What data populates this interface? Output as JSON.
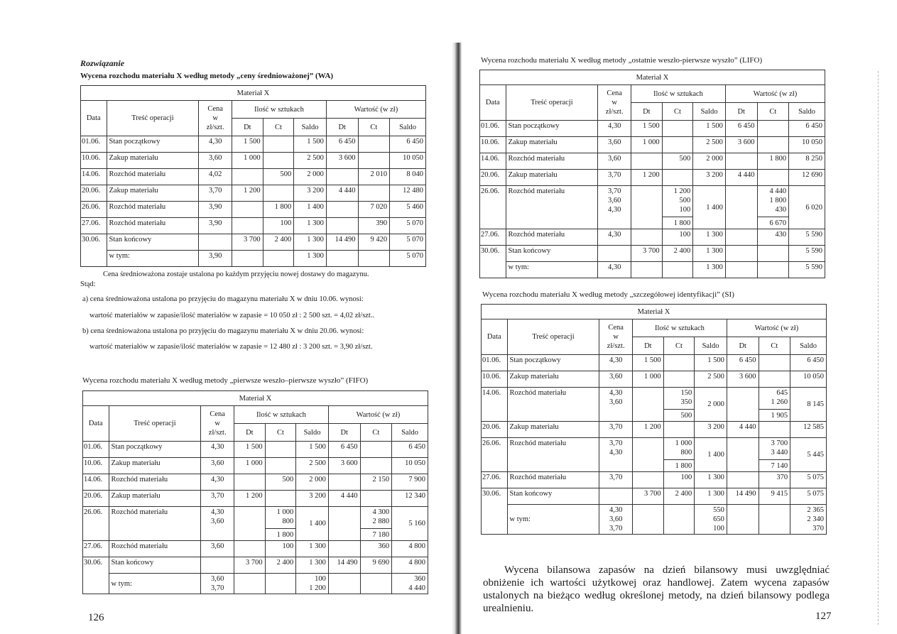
{
  "headers": {
    "material": "Materiał X",
    "date": "Data",
    "desc": "Treść operacji",
    "price": [
      "Cena",
      "w",
      "zł/szt."
    ],
    "qty": "Ilość w sztukach",
    "value": "Wartość (w zł)",
    "dt": "Dt",
    "ct": "Ct",
    "saldo": "Saldo"
  },
  "left_page": {
    "heading": "Rozwiązanie",
    "paragraph": "Cena średnioważona zostaje ustalona po każdym przyjęciu nowej dostawy do magazynu.",
    "stad": "Stąd:",
    "a": "a) cena średnioważona ustalona po przyjęciu do magazynu materiału X w dniu 10.06. wynosi:",
    "a_formula": "wartość materiałów w zapasie/ilość materiałów w zapasie = 10 050 zł : 2 500 szt. = 4,02 zł/szt..",
    "b": "b) cena średnioważona ustalona po przyjęciu do magazynu materiału X w dniu 20.06. wynosi:",
    "b_formula": "wartość materiałów w zapasie/ilość materiałów w zapasie = 12 480 zł : 3 200 szt. = 3,90 zł/szt.",
    "page_number": "126"
  },
  "right_page": {
    "paragraph": "Wycena bilansowa zapasów na dzień bilansowy musi uwzględniać obniżenie ich wartości użytkowej oraz handlowej. Zatem wycena zapasów ustalonych na bieżąco według określonej metody, na dzień bilansowy podlega urealnieniu.",
    "page_number": "127"
  },
  "tables": [
    {
      "caption": "Wycena rozchodu materiału X według metody „ceny średnioważonej” (WA)",
      "rows": [
        {
          "date": "01.06.",
          "desc": "Stan początkowy",
          "price": [
            "4,30"
          ],
          "q_dt": [
            "1 500"
          ],
          "q_ct": [],
          "q_saldo": [
            "1 500"
          ],
          "v_dt": [
            "6 450"
          ],
          "v_ct": [],
          "v_saldo": [
            "6 450"
          ]
        },
        {
          "date": "10.06.",
          "desc": "Zakup materiału",
          "price": [
            "3,60"
          ],
          "q_dt": [
            "1 000"
          ],
          "q_ct": [],
          "q_saldo": [
            "2 500"
          ],
          "v_dt": [
            "3 600"
          ],
          "v_ct": [],
          "v_saldo": [
            "10 050"
          ]
        },
        {
          "date": "14.06.",
          "desc": "Rozchód materiału",
          "price": [
            "4,02"
          ],
          "q_dt": [],
          "q_ct": [
            "500"
          ],
          "q_saldo": [
            "2 000"
          ],
          "v_dt": [],
          "v_ct": [
            "2 010"
          ],
          "v_saldo": [
            "8 040"
          ]
        },
        {
          "date": "20.06.",
          "desc": "Zakup materiału",
          "price": [
            "3,70"
          ],
          "q_dt": [
            "1 200"
          ],
          "q_ct": [],
          "q_saldo": [
            "3 200"
          ],
          "v_dt": [
            "4 440"
          ],
          "v_ct": [],
          "v_saldo": [
            "12 480"
          ]
        },
        {
          "date": "26.06.",
          "desc": "Rozchód materiału",
          "price": [
            "3,90"
          ],
          "q_dt": [],
          "q_ct": [
            "1 800"
          ],
          "q_saldo": [
            "1 400"
          ],
          "v_dt": [],
          "v_ct": [
            "7 020"
          ],
          "v_saldo": [
            "5 460"
          ]
        },
        {
          "date": "27.06.",
          "desc": "Rozchód materiału",
          "price": [
            "3,90"
          ],
          "q_dt": [],
          "q_ct": [
            "100"
          ],
          "q_saldo": [
            "1 300"
          ],
          "v_dt": [],
          "v_ct": [
            "390"
          ],
          "v_saldo": [
            "5 070"
          ]
        },
        {
          "date": "30.06.",
          "desc": "Stan końcowy",
          "price": [],
          "q_dt": [
            "3 700"
          ],
          "q_ct": [
            "2 400"
          ],
          "q_saldo": [
            "1 300"
          ],
          "v_dt": [
            "14 490"
          ],
          "v_ct": [
            "9 420"
          ],
          "v_saldo": [
            "5 070"
          ]
        },
        {
          "date": "",
          "desc": "w tym:",
          "price": [
            "3,90"
          ],
          "q_dt": [],
          "q_ct": [],
          "q_saldo": [
            "1 300"
          ],
          "v_dt": [],
          "v_ct": [],
          "v_saldo": [
            "5 070"
          ]
        }
      ]
    },
    {
      "caption": "Wycena rozchodu materiału X według metody „pierwsze weszło–pierwsze wyszło” (FIFO)",
      "rows": [
        {
          "date": "01.06.",
          "desc": "Stan początkowy",
          "price": [
            "4,30"
          ],
          "q_dt": [
            "1 500"
          ],
          "q_ct": [],
          "q_saldo": [
            "1 500"
          ],
          "v_dt": [
            "6 450"
          ],
          "v_ct": [],
          "v_saldo": [
            "6 450"
          ]
        },
        {
          "date": "10.06.",
          "desc": "Zakup materiału",
          "price": [
            "3,60"
          ],
          "q_dt": [
            "1 000"
          ],
          "q_ct": [],
          "q_saldo": [
            "2 500"
          ],
          "v_dt": [
            "3 600"
          ],
          "v_ct": [],
          "v_saldo": [
            "10 050"
          ]
        },
        {
          "date": "14.06.",
          "desc": "Rozchód materiału",
          "price": [
            "4,30"
          ],
          "q_dt": [],
          "q_ct": [
            "500"
          ],
          "q_saldo": [
            "2 000"
          ],
          "v_dt": [],
          "v_ct": [
            "2 150"
          ],
          "v_saldo": [
            "7 900"
          ]
        },
        {
          "date": "20.06.",
          "desc": "Zakup materiału",
          "price": [
            "3,70"
          ],
          "q_dt": [
            "1 200"
          ],
          "q_ct": [],
          "q_saldo": [
            "3 200"
          ],
          "v_dt": [
            "4 440"
          ],
          "v_ct": [],
          "v_saldo": [
            "12 340"
          ]
        },
        {
          "date": "26.06.",
          "desc": "Rozchód materiału",
          "price": [
            "4,30",
            "3,60"
          ],
          "q_dt": [],
          "q_ct": [
            "1 000",
            "800"
          ],
          "q_ct_total": "1 800",
          "q_saldo": [
            "1 400"
          ],
          "v_dt": [],
          "v_ct": [
            "4 300",
            "2 880"
          ],
          "v_ct_total": "7 180",
          "v_saldo": [
            "5 160"
          ]
        },
        {
          "date": "27.06.",
          "desc": "Rozchód materiału",
          "price": [
            "3,60"
          ],
          "q_dt": [],
          "q_ct": [
            "100"
          ],
          "q_saldo": [
            "1 300"
          ],
          "v_dt": [],
          "v_ct": [
            "360"
          ],
          "v_saldo": [
            "4 800"
          ]
        },
        {
          "date": "30.06.",
          "desc": "Stan końcowy",
          "price": [],
          "q_dt": [
            "3 700"
          ],
          "q_ct": [
            "2 400"
          ],
          "q_saldo": [
            "1 300"
          ],
          "v_dt": [
            "14 490"
          ],
          "v_ct": [
            "9 690"
          ],
          "v_saldo": [
            "4 800"
          ]
        },
        {
          "date": "",
          "desc": "w tym:",
          "price": [
            "3,60",
            "3,70"
          ],
          "q_dt": [],
          "q_ct": [],
          "q_saldo": [
            "100",
            "1 200"
          ],
          "v_dt": [],
          "v_ct": [],
          "v_saldo": [
            "360",
            "4 440"
          ]
        }
      ]
    },
    {
      "caption": "Wycena rozchodu materiału X według metody „ostatnie weszło-pierwsze wyszło” (LIFO)",
      "rows": [
        {
          "date": "01.06.",
          "desc": "Stan początkowy",
          "price": [
            "4,30"
          ],
          "q_dt": [
            "1 500"
          ],
          "q_ct": [],
          "q_saldo": [
            "1 500"
          ],
          "v_dt": [
            "6 450"
          ],
          "v_ct": [],
          "v_saldo": [
            "6 450"
          ]
        },
        {
          "date": "10.06.",
          "desc": "Zakup materiału",
          "price": [
            "3,60"
          ],
          "q_dt": [
            "1 000"
          ],
          "q_ct": [],
          "q_saldo": [
            "2 500"
          ],
          "v_dt": [
            "3 600"
          ],
          "v_ct": [],
          "v_saldo": [
            "10 050"
          ]
        },
        {
          "date": "14.06.",
          "desc": "Rozchód materiału",
          "price": [
            "3,60"
          ],
          "q_dt": [],
          "q_ct": [
            "500"
          ],
          "q_saldo": [
            "2 000"
          ],
          "v_dt": [],
          "v_ct": [
            "1 800"
          ],
          "v_saldo": [
            "8 250"
          ]
        },
        {
          "date": "20.06.",
          "desc": "Zakup materiału",
          "price": [
            "3,70"
          ],
          "q_dt": [
            "1 200"
          ],
          "q_ct": [],
          "q_saldo": [
            "3 200"
          ],
          "v_dt": [
            "4 440"
          ],
          "v_ct": [],
          "v_saldo": [
            "12 690"
          ]
        },
        {
          "date": "26.06.",
          "desc": "Rozchód materiału",
          "price": [
            "3,70",
            "3,60",
            "4,30"
          ],
          "q_dt": [],
          "q_ct": [
            "1 200",
            "500",
            "100"
          ],
          "q_ct_total": "1 800",
          "q_saldo": [
            "1 400"
          ],
          "v_dt": [],
          "v_ct": [
            "4 440",
            "1 800",
            "430"
          ],
          "v_ct_total": "6 670",
          "v_saldo": [
            "6 020"
          ]
        },
        {
          "date": "27.06.",
          "desc": "Rozchód materiału",
          "price": [
            "4,30"
          ],
          "q_dt": [],
          "q_ct": [
            "100"
          ],
          "q_saldo": [
            "1 300"
          ],
          "v_dt": [],
          "v_ct": [
            "430"
          ],
          "v_saldo": [
            "5 590"
          ]
        },
        {
          "date": "30.06.",
          "desc": "Stan końcowy",
          "price": [],
          "q_dt": [
            "3 700"
          ],
          "q_ct": [
            "2 400"
          ],
          "q_saldo": [
            "1 300"
          ],
          "v_dt": [],
          "v_ct": [],
          "v_saldo": [
            "5 590"
          ]
        },
        {
          "date": "",
          "desc": "w tym:",
          "price": [
            "4,30"
          ],
          "q_dt": [],
          "q_ct": [],
          "q_saldo": [
            "1 300"
          ],
          "v_dt": [],
          "v_ct": [],
          "v_saldo": [
            "5 590"
          ]
        }
      ]
    },
    {
      "caption": "Wycena rozchodu materiału X według metody „szczegółowej identyfikacji” (SI)",
      "rows": [
        {
          "date": "01.06.",
          "desc": "Stan początkowy",
          "price": [
            "4,30"
          ],
          "q_dt": [
            "1 500"
          ],
          "q_ct": [],
          "q_saldo": [
            "1 500"
          ],
          "v_dt": [
            "6 450"
          ],
          "v_ct": [],
          "v_saldo": [
            "6 450"
          ]
        },
        {
          "date": "10.06.",
          "desc": "Zakup materiału",
          "price": [
            "3,60"
          ],
          "q_dt": [
            "1 000"
          ],
          "q_ct": [],
          "q_saldo": [
            "2 500"
          ],
          "v_dt": [
            "3 600"
          ],
          "v_ct": [],
          "v_saldo": [
            "10 050"
          ]
        },
        {
          "date": "14.06.",
          "desc": "Rozchód materiału",
          "price": [
            "4,30",
            "3,60"
          ],
          "q_dt": [],
          "q_ct": [
            "150",
            "350"
          ],
          "q_ct_total": "500",
          "q_saldo": [
            "2 000"
          ],
          "v_dt": [],
          "v_ct": [
            "645",
            "1 260"
          ],
          "v_ct_total": "1 905",
          "v_saldo": [
            "8 145"
          ]
        },
        {
          "date": "20.06.",
          "desc": "Zakup materiału",
          "price": [
            "3,70"
          ],
          "q_dt": [
            "1 200"
          ],
          "q_ct": [],
          "q_saldo": [
            "3 200"
          ],
          "v_dt": [
            "4 440"
          ],
          "v_ct": [],
          "v_saldo": [
            "12 585"
          ]
        },
        {
          "date": "26.06.",
          "desc": "Rozchód materiału",
          "price": [
            "3,70",
            "4,30"
          ],
          "q_dt": [],
          "q_ct": [
            "1 000",
            "800"
          ],
          "q_ct_total": "1 800",
          "q_saldo": [
            "1 400"
          ],
          "v_dt": [],
          "v_ct": [
            "3 700",
            "3 440"
          ],
          "v_ct_total": "7 140",
          "v_saldo": [
            "5 445"
          ]
        },
        {
          "date": "27.06.",
          "desc": "Rozchód materiału",
          "price": [
            "3,70"
          ],
          "q_dt": [],
          "q_ct": [
            "100"
          ],
          "q_saldo": [
            "1 300"
          ],
          "v_dt": [],
          "v_ct": [
            "370"
          ],
          "v_saldo": [
            "5 075"
          ]
        },
        {
          "date": "30.06.",
          "desc": "Stan końcowy",
          "price": [],
          "q_dt": [
            "3 700"
          ],
          "q_ct": [
            "2 400"
          ],
          "q_saldo": [
            "1 300"
          ],
          "v_dt": [
            "14 490"
          ],
          "v_ct": [
            "9 415"
          ],
          "v_saldo": [
            "5 075"
          ]
        },
        {
          "date": "",
          "desc": "w tym:",
          "price": [
            "4,30",
            "3,60",
            "3,70"
          ],
          "q_dt": [],
          "q_ct": [],
          "q_saldo": [
            "550",
            "650",
            "100"
          ],
          "v_dt": [],
          "v_ct": [],
          "v_saldo": [
            "2 365",
            "2 340",
            "370"
          ]
        }
      ]
    }
  ]
}
